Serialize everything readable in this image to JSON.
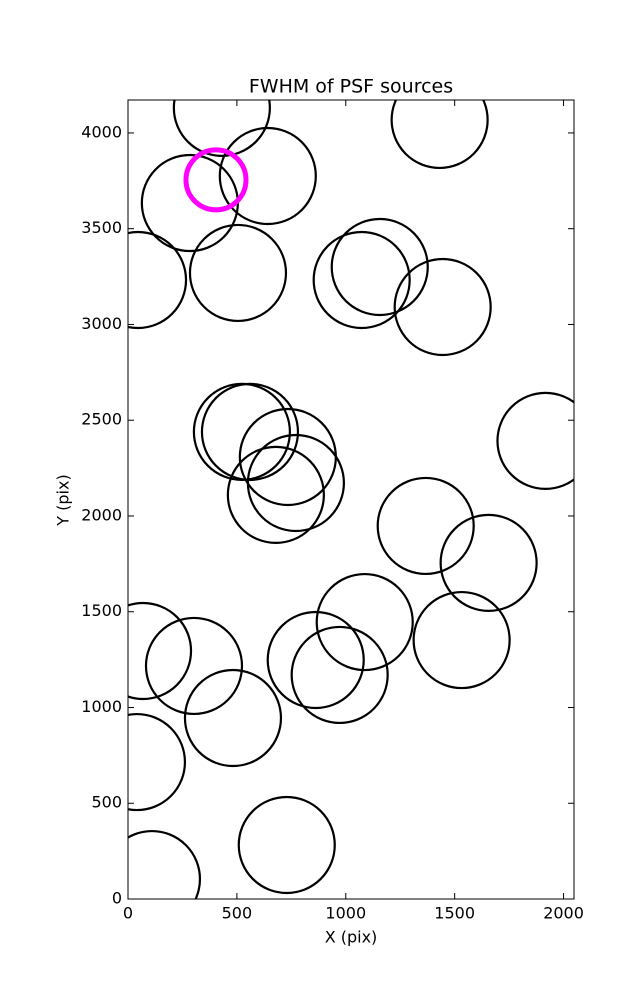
{
  "chart_data": {
    "type": "scatter",
    "title": "FWHM of PSF sources",
    "x_label": "X (pix)",
    "y_label": "Y (pix)",
    "xlim": [
      0,
      2048
    ],
    "ylim": [
      0,
      4172
    ],
    "xticks": [
      0,
      500,
      1000,
      1500,
      2000
    ],
    "yticks": [
      0,
      500,
      1000,
      1500,
      2000,
      2500,
      3000,
      3500,
      4000
    ],
    "series": [
      {
        "color": "#000000",
        "x": [
          431,
          642,
          284,
          46,
          505,
          1431,
          1156,
          1073,
          1445,
          523,
          560,
          734,
          771,
          679,
          1917,
          1367,
          1656,
          1532,
          1087,
          862,
          972,
          69,
          303,
          482,
          41,
          110,
          729
        ],
        "values": [
          4131,
          3775,
          3634,
          3232,
          3269,
          4068,
          3300,
          3232,
          3091,
          2439,
          2439,
          2308,
          2172,
          2110,
          2392,
          1948,
          1755,
          1352,
          1446,
          1248,
          1170,
          1295,
          1217,
          945,
          715,
          104,
          282
        ]
      },
      {
        "color": "#ff00ff",
        "x": [
          404
        ],
        "values": [
          3755
        ]
      }
    ]
  }
}
